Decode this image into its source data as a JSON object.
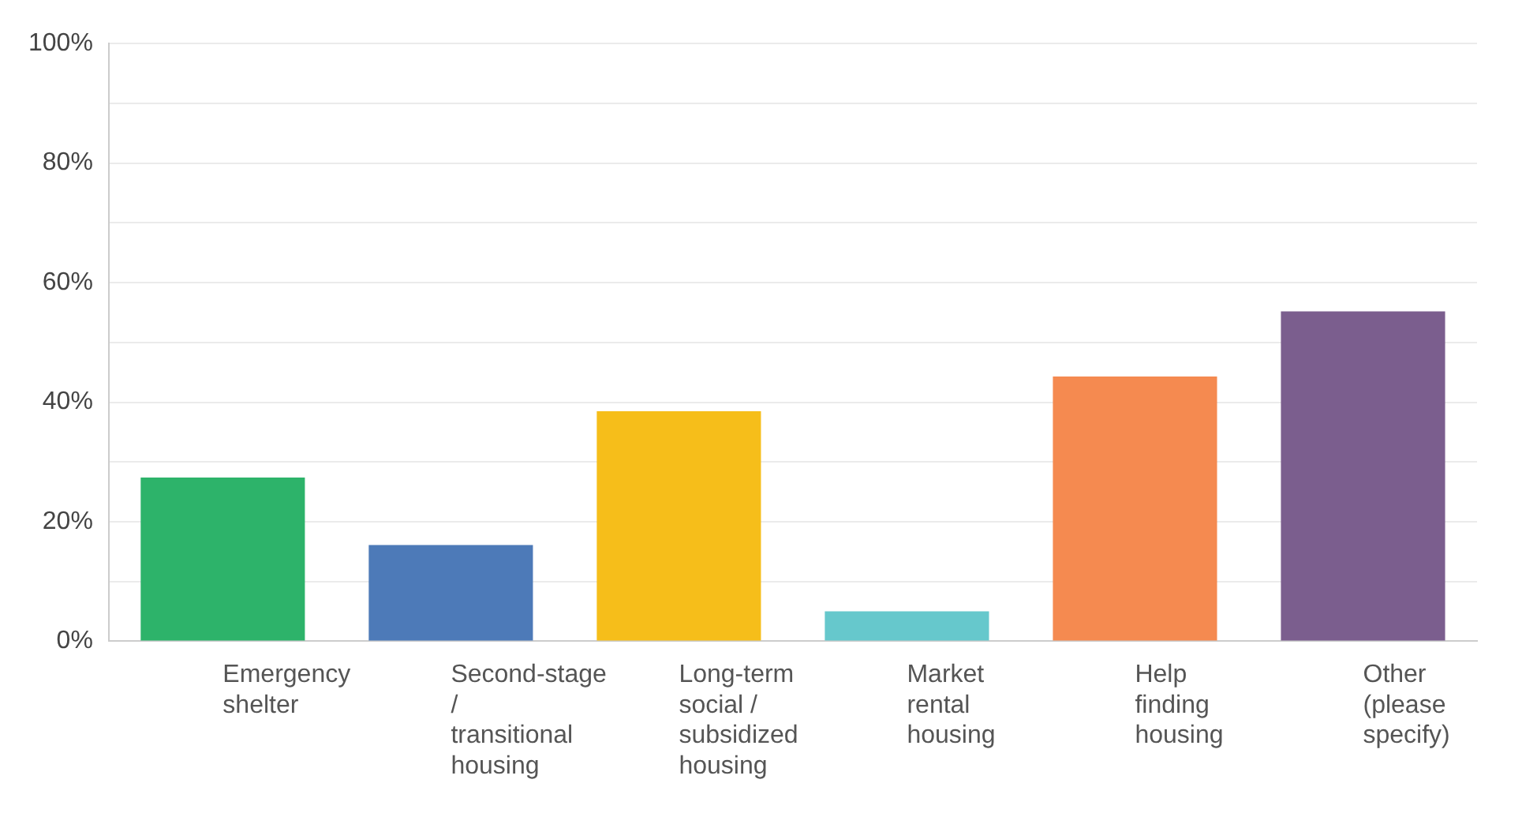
{
  "chart_data": {
    "type": "bar",
    "categories": [
      "Emergency shelter",
      "Second-stage / transitional housing",
      "Long-term social / subsidized housing",
      "Market rental housing",
      "Help finding housing",
      "Other (please specify)"
    ],
    "values": [
      27.4,
      16.1,
      38.5,
      5.0,
      44.3,
      55.2
    ],
    "colors": [
      "#2db36a",
      "#4d7ab8",
      "#f6be1a",
      "#66c8cc",
      "#f58a50",
      "#7b5e8e"
    ],
    "ylim": [
      0,
      100
    ],
    "yticks": [
      {
        "value": 0,
        "label": "0%"
      },
      {
        "value": 10,
        "label": null
      },
      {
        "value": 20,
        "label": "20%"
      },
      {
        "value": 30,
        "label": null
      },
      {
        "value": 40,
        "label": "40%"
      },
      {
        "value": 50,
        "label": null
      },
      {
        "value": 60,
        "label": "60%"
      },
      {
        "value": 70,
        "label": null
      },
      {
        "value": 80,
        "label": "80%"
      },
      {
        "value": 90,
        "label": null
      },
      {
        "value": 100,
        "label": "100%"
      }
    ],
    "grid": "y",
    "legend": false
  }
}
